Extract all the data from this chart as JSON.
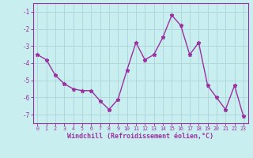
{
  "x": [
    0,
    1,
    2,
    3,
    4,
    5,
    6,
    7,
    8,
    9,
    10,
    11,
    12,
    13,
    14,
    15,
    16,
    17,
    18,
    19,
    20,
    21,
    22,
    23
  ],
  "y": [
    -3.5,
    -3.8,
    -4.7,
    -5.2,
    -5.5,
    -5.6,
    -5.6,
    -6.2,
    -6.7,
    -6.1,
    -4.4,
    -2.8,
    -3.8,
    -3.5,
    -2.5,
    -1.2,
    -1.8,
    -3.5,
    -2.8,
    -5.3,
    -6.0,
    -6.7,
    -5.3,
    -7.1
  ],
  "line_color": "#9B30A0",
  "marker_color": "#9B30A0",
  "bg_color": "#C8EEF0",
  "grid_color": "#B0D8DC",
  "xlabel": "Windchill (Refroidissement éolien,°C)",
  "xlabel_color": "#9B30A0",
  "tick_color": "#9B30A0",
  "spine_color": "#9B30A0",
  "ylim": [
    -7.5,
    -0.5
  ],
  "xlim": [
    -0.5,
    23.5
  ],
  "yticks": [
    -7,
    -6,
    -5,
    -4,
    -3,
    -2,
    -1
  ],
  "xticks": [
    0,
    1,
    2,
    3,
    4,
    5,
    6,
    7,
    8,
    9,
    10,
    11,
    12,
    13,
    14,
    15,
    16,
    17,
    18,
    19,
    20,
    21,
    22,
    23
  ],
  "marker": "*",
  "markersize": 3.5,
  "linewidth": 1.0
}
